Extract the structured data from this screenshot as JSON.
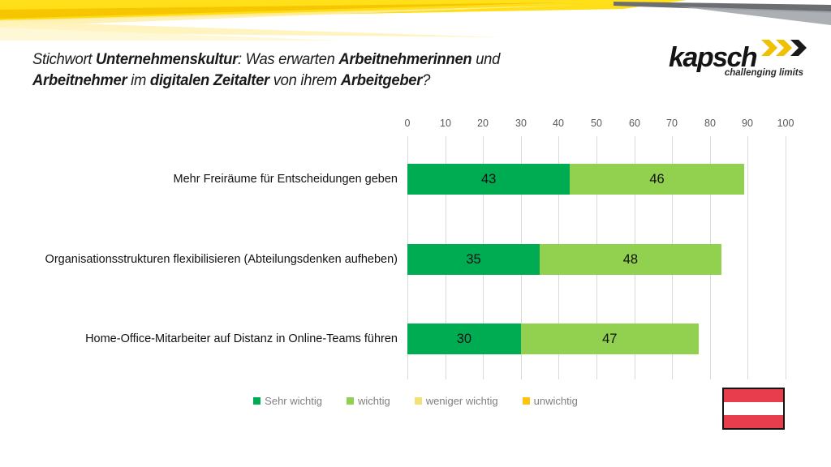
{
  "header": {
    "title_lines": [
      [
        {
          "text": "Stichwort ",
          "bold": false
        },
        {
          "text": "Unternehmenskultur",
          "bold": true
        },
        {
          "text": ": Was erwarten ",
          "bold": false
        },
        {
          "text": "Arbeitnehmerinnen",
          "bold": true
        },
        {
          "text": " und",
          "bold": false
        }
      ],
      [
        {
          "text": "Arbeitnehmer",
          "bold": true
        },
        {
          "text": " im ",
          "bold": false
        },
        {
          "text": "digitalen Zeitalter",
          "bold": true
        },
        {
          "text": " von ihrem ",
          "bold": false
        },
        {
          "text": "Arbeitgeber",
          "bold": true
        },
        {
          "text": "?",
          "bold": false
        }
      ]
    ],
    "logo": {
      "brand": "kapsch",
      "tagline": "challenging limits",
      "chevron_colors": [
        "#f0c005",
        "#f0c005",
        "#1a1a1a"
      ]
    }
  },
  "chart_data": {
    "type": "bar",
    "orientation": "horizontal",
    "stacked": true,
    "categories": [
      "Mehr Freiräume für Entscheidungen geben",
      "Organisationsstrukturen flexibilisieren (Abteilungsdenken aufheben)",
      "Home-Office-Mitarbeiter auf Distanz in Online-Teams führen"
    ],
    "series": [
      {
        "name": "Sehr wichtig",
        "color": "#00ac52",
        "values": [
          43,
          35,
          30
        ]
      },
      {
        "name": "wichtig",
        "color": "#92d050",
        "values": [
          46,
          48,
          47
        ]
      }
    ],
    "legend": [
      {
        "label": "Sehr wichtig",
        "color": "#00ac52"
      },
      {
        "label": "wichtig",
        "color": "#92d050"
      },
      {
        "label": "weniger wichtig",
        "color": "#f2df76"
      },
      {
        "label": "unwichtig",
        "color": "#ffc408"
      }
    ],
    "xlim": [
      0,
      100
    ],
    "x_ticks": [
      0,
      10,
      20,
      30,
      40,
      50,
      60,
      70,
      80,
      90,
      100
    ],
    "axis_position": "top",
    "grid": true,
    "legend_position": "bottom"
  },
  "footer": {
    "flag": {
      "colors": [
        "#e83d4d",
        "#ffffff",
        "#e83d4d"
      ]
    }
  }
}
